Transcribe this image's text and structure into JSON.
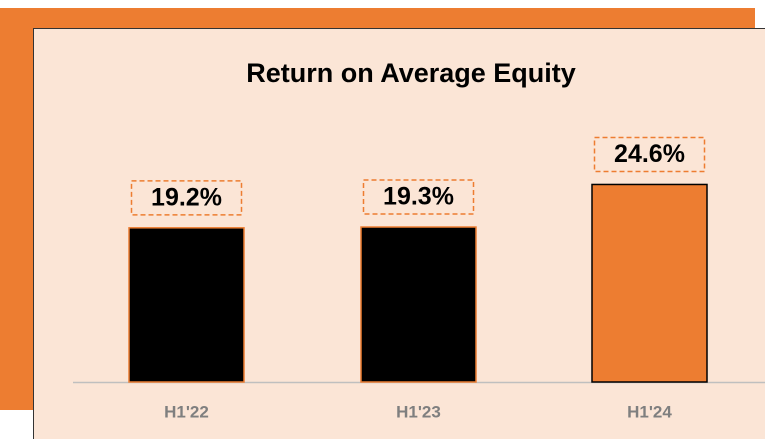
{
  "chart_data": {
    "type": "bar",
    "title": "Return on Average Equity",
    "categories": [
      "H1'22",
      "H1'23",
      "H1'24"
    ],
    "values": [
      19.2,
      19.3,
      24.6
    ],
    "value_labels": [
      "19.2%",
      "19.3%",
      "24.6%"
    ],
    "colors": [
      "#000000",
      "#000000",
      "#ed7d31"
    ]
  }
}
